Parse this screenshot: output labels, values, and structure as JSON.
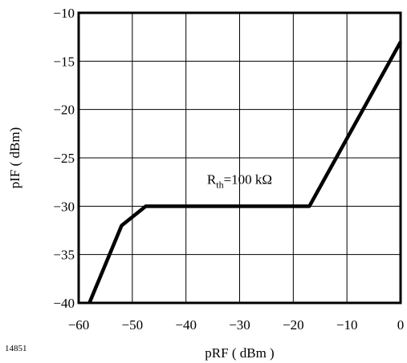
{
  "chart_data": {
    "type": "line",
    "xlabel": "pRF ( dBm )",
    "ylabel": "pIF ( dBm)",
    "xlim": [
      -60,
      0
    ],
    "ylim": [
      -40,
      -10
    ],
    "xticks": [
      -60,
      -50,
      -40,
      -30,
      -20,
      -10,
      0
    ],
    "yticks": [
      -10,
      -15,
      -20,
      -25,
      -30,
      -35,
      -40
    ],
    "xtick_labels": [
      "−60",
      "−50",
      "−40",
      "−30",
      "−20",
      "−10",
      "0"
    ],
    "ytick_labels": [
      "−10",
      "−15",
      "−20",
      "−25",
      "−30",
      "−35",
      "−40"
    ],
    "grid": true,
    "series": [
      {
        "x": [
          -58,
          -52,
          -47.5,
          -17,
          0
        ],
        "y": [
          -40,
          -32,
          -30,
          -30,
          -13
        ]
      }
    ],
    "annotation": {
      "base": "R",
      "sub": "th",
      "rest": "=100 kΩ",
      "x": -30,
      "y": -27.7
    }
  },
  "figure_id": "14851"
}
